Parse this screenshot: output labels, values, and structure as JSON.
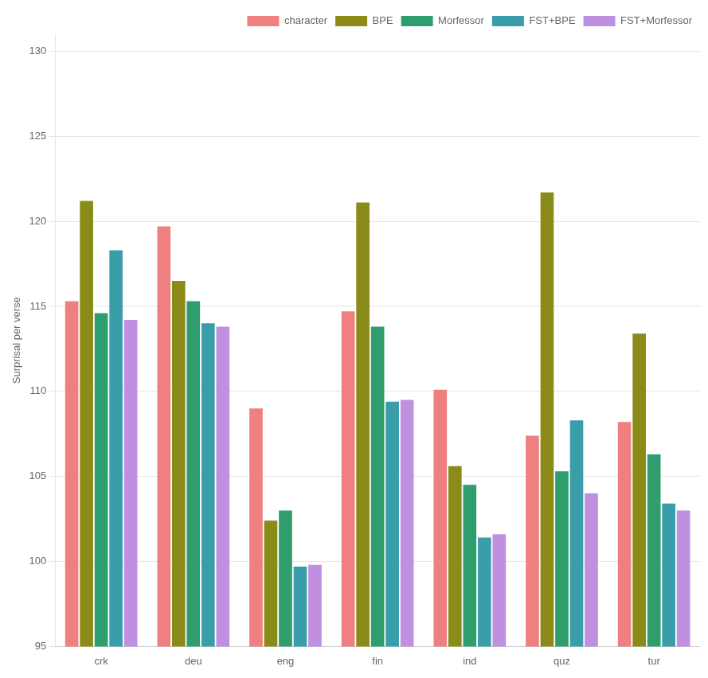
{
  "chart_data": {
    "type": "bar",
    "categories": [
      "crk",
      "deu",
      "eng",
      "fin",
      "ind",
      "quz",
      "tur"
    ],
    "series": [
      {
        "name": "character",
        "color": "#f08080",
        "values": [
          115.3,
          119.7,
          109.0,
          114.7,
          110.1,
          107.4,
          108.2
        ]
      },
      {
        "name": "BPE",
        "color": "#8b8b1a",
        "values": [
          121.2,
          116.5,
          102.4,
          121.1,
          105.6,
          121.7,
          113.4
        ]
      },
      {
        "name": "Morfessor",
        "color": "#2e9e6e",
        "values": [
          114.6,
          115.3,
          103.0,
          113.8,
          104.5,
          105.3,
          106.3
        ]
      },
      {
        "name": "FST+BPE",
        "color": "#3a9eaa",
        "values": [
          118.3,
          114.0,
          99.7,
          109.4,
          101.4,
          108.3,
          103.4
        ]
      },
      {
        "name": "FST+Morfessor",
        "color": "#c090e0",
        "values": [
          114.2,
          113.8,
          99.8,
          109.5,
          101.6,
          104.0,
          103.0
        ]
      }
    ],
    "ylabel": "Surprisal per verse",
    "ylim": [
      95,
      131
    ],
    "yticks": [
      95,
      100,
      105,
      110,
      115,
      120,
      125,
      130
    ],
    "grid": true,
    "legend": "upper right"
  }
}
